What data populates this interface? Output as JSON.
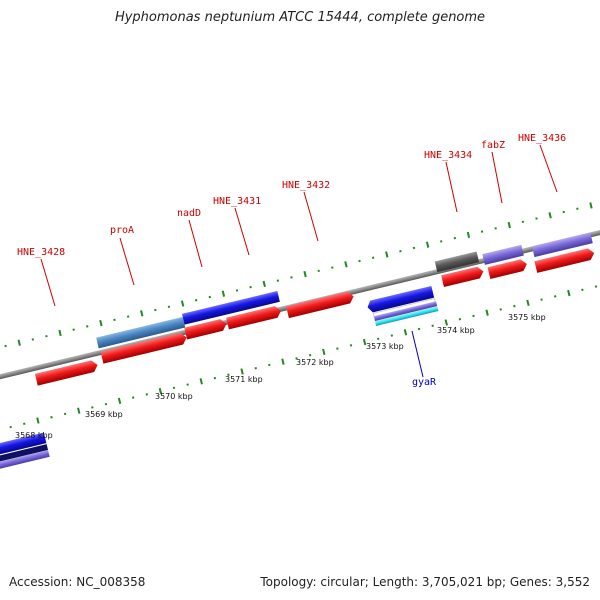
{
  "header": {
    "title": "Hyphomonas neptunium ATCC 15444, complete genome"
  },
  "footer": {
    "accession": "Accession: NC_008358",
    "topology": "Topology: circular; Length: 3,705,021 bp; Genes: 3,552"
  },
  "colors": {
    "forward_gene": "#e8141a",
    "blue_gene": "#1418e0",
    "steel_gene": "#4a87c4",
    "purple_gene": "#7b6ad8",
    "dark_gene": "#5a5a5a",
    "cyan_gene": "#35e4f0",
    "navy_gene": "#101060",
    "tick_green": "#228822",
    "backbone": "#8a8a8a",
    "label_red": "#cc0000",
    "label_blue": "#0000bb"
  },
  "kbp_labels": [
    {
      "text": "3568 kbp"
    },
    {
      "text": "3569 kbp"
    },
    {
      "text": "3570 kbp"
    },
    {
      "text": "3571 kbp"
    },
    {
      "text": "3572 kbp"
    },
    {
      "text": "3573 kbp"
    },
    {
      "text": "3574 kbp"
    },
    {
      "text": "3575 kbp"
    }
  ],
  "gene_labels": [
    {
      "text": "HNE_3428"
    },
    {
      "text": "proA"
    },
    {
      "text": "nadD"
    },
    {
      "text": "HNE_3431"
    },
    {
      "text": "HNE_3432"
    },
    {
      "text": "HNE_3434"
    },
    {
      "text": "fabZ"
    },
    {
      "text": "HNE_3436"
    },
    {
      "text": "gyaR"
    }
  ]
}
